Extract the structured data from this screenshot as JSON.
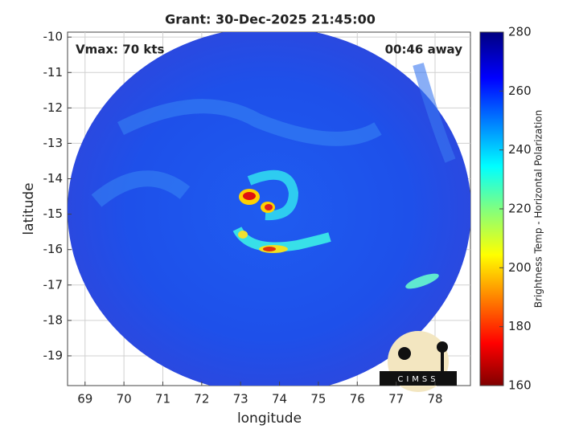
{
  "chart_data": {
    "type": "map",
    "title": "Grant: 30-Dec-2025 21:45:00",
    "annotations": {
      "left": "Vmax: 70 kts",
      "right": "00:46 away"
    },
    "xlabel": "longitude",
    "ylabel": "latitude",
    "xlim": [
      68.55,
      78.91
    ],
    "xticks": [
      69,
      70,
      71,
      72,
      73,
      74,
      75,
      76,
      77,
      78
    ],
    "ylim": [
      -9.86,
      -19.84
    ],
    "yticks": [
      -10,
      -11,
      -12,
      -13,
      -14,
      -15,
      -16,
      -17,
      -18,
      -19
    ],
    "grid": true,
    "colorbar": {
      "label": "Brightness Temp - Horizontal Polarization",
      "clim": [
        160,
        280
      ],
      "ticks": [
        160,
        180,
        200,
        220,
        240,
        260,
        280
      ]
    },
    "logo": "CIMSS"
  }
}
